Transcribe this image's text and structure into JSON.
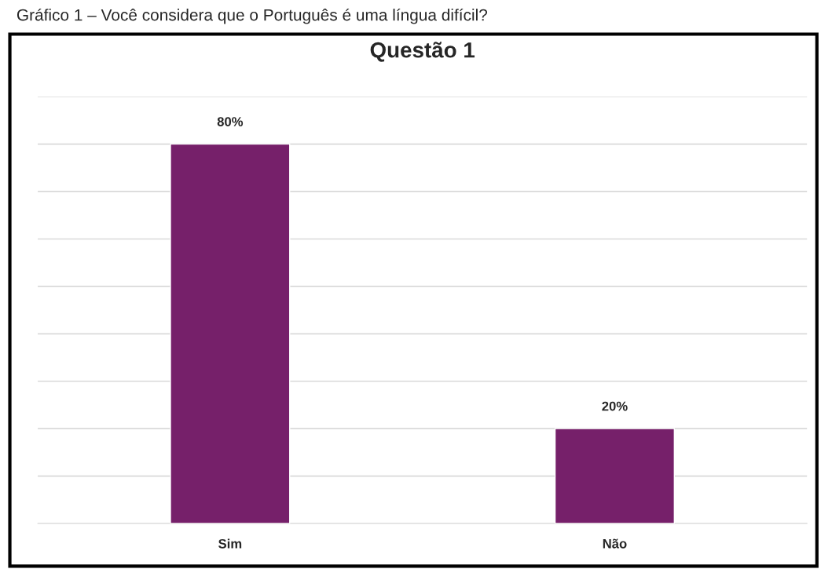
{
  "chart_data": {
    "type": "bar",
    "title": "Questão 1",
    "annotations": [
      "Gráfico 1 – Você considera que o Português é uma língua difícil?"
    ],
    "categories": [
      "Sim",
      "Não"
    ],
    "values": [
      80,
      20
    ],
    "color": "#76206a",
    "value_labels": [
      "80%",
      "20%"
    ],
    "ylim": [
      0,
      90
    ],
    "yticks": [
      {
        "value": 0,
        "label": null
      },
      {
        "value": 10,
        "label": null
      },
      {
        "value": 20,
        "label": null
      },
      {
        "value": 30,
        "label": null
      },
      {
        "value": 40,
        "label": null
      },
      {
        "value": 50,
        "label": null
      },
      {
        "value": 60,
        "label": null
      },
      {
        "value": 70,
        "label": null
      },
      {
        "value": 80,
        "label": null
      },
      {
        "value": 90,
        "label": null
      }
    ],
    "grid": "y",
    "legend": false
  }
}
